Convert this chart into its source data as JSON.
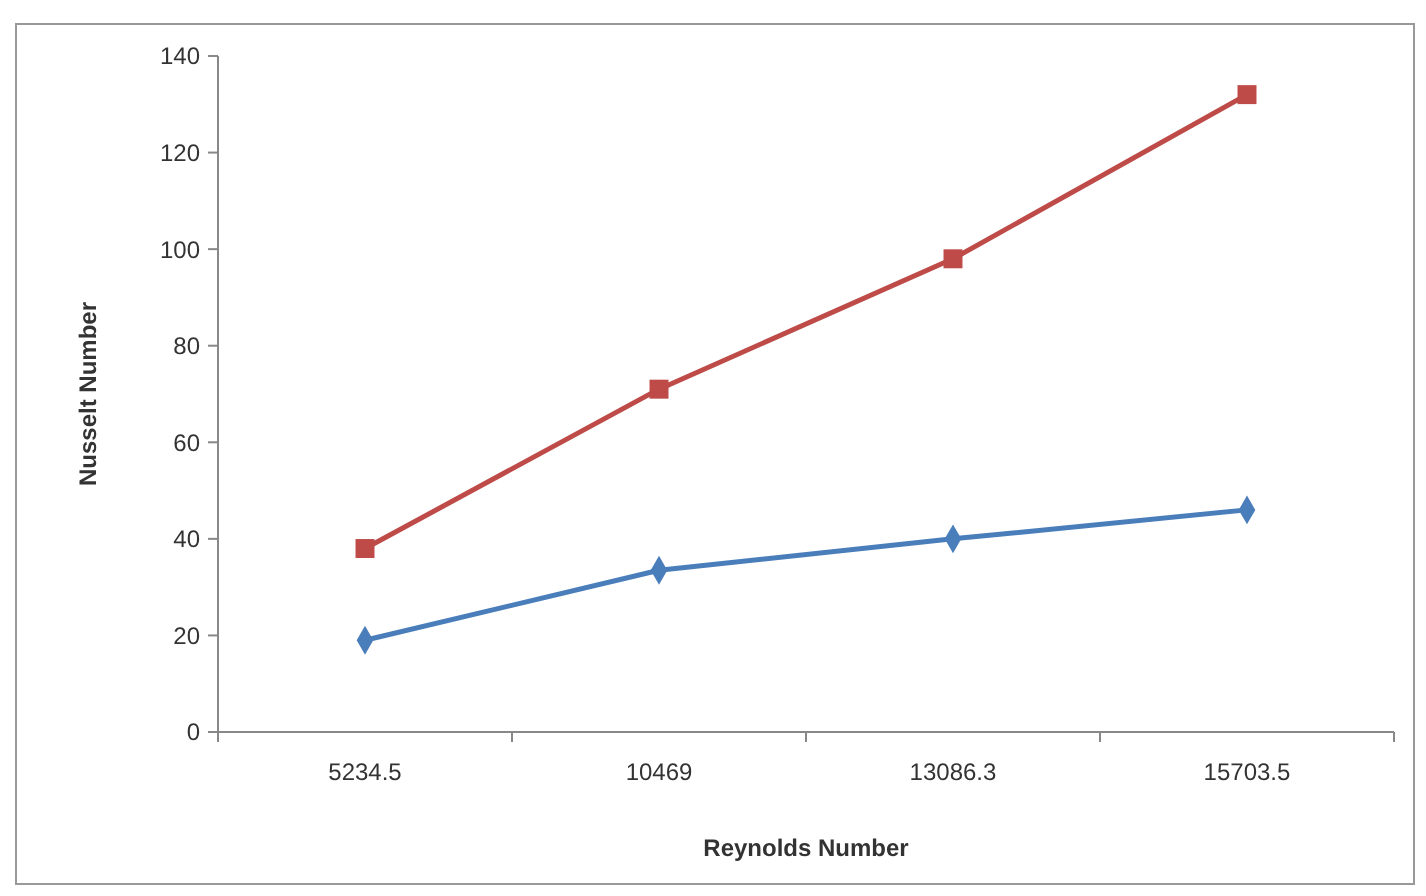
{
  "chart_data": {
    "type": "line",
    "xlabel": "Reynolds Number",
    "ylabel": "Nusselt Number",
    "categories": [
      "5234.5",
      "10469",
      "13086.3",
      "15703.5"
    ],
    "ylim": [
      0,
      140
    ],
    "yticks": [
      0,
      20,
      40,
      60,
      80,
      100,
      120,
      140
    ],
    "grid": false,
    "series": [
      {
        "color": "#4a7ebb",
        "marker": "diamond",
        "values": [
          19,
          33.5,
          40,
          46
        ]
      },
      {
        "color": "#be4b48",
        "marker": "square",
        "values": [
          38,
          71,
          98,
          132
        ]
      }
    ]
  }
}
